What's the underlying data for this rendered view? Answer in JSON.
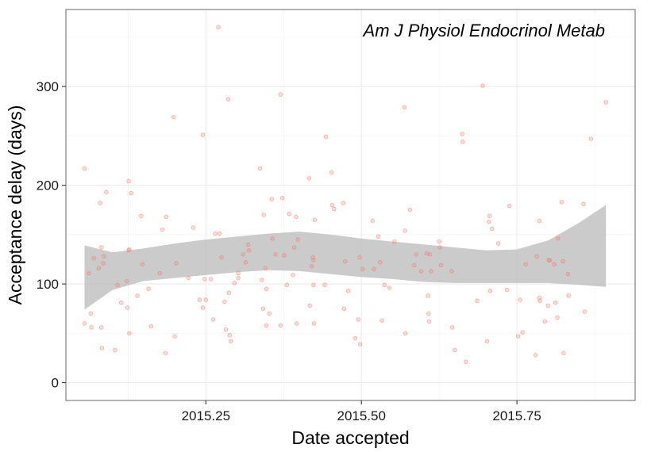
{
  "chart_data": {
    "type": "scatter",
    "title": "",
    "annotation": "Am J Physiol Endocrinol Metab",
    "xlabel": "Date accepted",
    "ylabel": "Acceptance delay (days)",
    "xlim": [
      2015.025,
      2015.94
    ],
    "ylim": [
      -18,
      378
    ],
    "x_ticks": [
      2015.25,
      2015.5,
      2015.75
    ],
    "x_tick_labels": [
      "2015.25",
      "2015.50",
      "2015.75"
    ],
    "y_ticks": [
      0,
      100,
      200,
      300
    ],
    "y_tick_labels": [
      "0",
      "100",
      "200",
      "300"
    ],
    "grid": true,
    "colors": {
      "points": "#f8766d",
      "band": "#bebebe",
      "grid": "#ebebeb",
      "panel_border": "#7f7f7f"
    },
    "points": [
      [
        2015.055,
        217
      ],
      [
        2015.055,
        60
      ],
      [
        2015.062,
        111
      ],
      [
        2015.065,
        70
      ],
      [
        2015.066,
        56
      ],
      [
        2015.07,
        126
      ],
      [
        2015.078,
        116
      ],
      [
        2015.08,
        182
      ],
      [
        2015.082,
        137
      ],
      [
        2015.082,
        56
      ],
      [
        2015.083,
        35
      ],
      [
        2015.085,
        121
      ],
      [
        2015.086,
        128
      ],
      [
        2015.09,
        193
      ],
      [
        2015.104,
        33
      ],
      [
        2015.108,
        99
      ],
      [
        2015.114,
        81
      ],
      [
        2015.123,
        103
      ],
      [
        2015.124,
        76
      ],
      [
        2015.126,
        134
      ],
      [
        2015.126,
        204
      ],
      [
        2015.127,
        50
      ],
      [
        2015.127,
        135
      ],
      [
        2015.13,
        192
      ],
      [
        2015.14,
        88
      ],
      [
        2015.146,
        169
      ],
      [
        2015.148,
        120
      ],
      [
        2015.158,
        95
      ],
      [
        2015.162,
        57
      ],
      [
        2015.176,
        111
      ],
      [
        2015.18,
        155
      ],
      [
        2015.185,
        30
      ],
      [
        2015.186,
        168
      ],
      [
        2015.198,
        269
      ],
      [
        2015.2,
        47
      ],
      [
        2015.202,
        121
      ],
      [
        2015.222,
        106
      ],
      [
        2015.23,
        157
      ],
      [
        2015.24,
        84
      ],
      [
        2015.245,
        251
      ],
      [
        2015.245,
        76
      ],
      [
        2015.248,
        105
      ],
      [
        2015.25,
        84
      ],
      [
        2015.258,
        105
      ],
      [
        2015.262,
        64
      ],
      [
        2015.265,
        151
      ],
      [
        2015.27,
        360
      ],
      [
        2015.272,
        151
      ],
      [
        2015.275,
        127
      ],
      [
        2015.28,
        82
      ],
      [
        2015.282,
        54
      ],
      [
        2015.286,
        287
      ],
      [
        2015.287,
        91
      ],
      [
        2015.288,
        48
      ],
      [
        2015.29,
        42
      ],
      [
        2015.296,
        101
      ],
      [
        2015.302,
        106
      ],
      [
        2015.302,
        111
      ],
      [
        2015.31,
        130
      ],
      [
        2015.314,
        122
      ],
      [
        2015.318,
        140
      ],
      [
        2015.319,
        134
      ],
      [
        2015.337,
        217
      ],
      [
        2015.34,
        104
      ],
      [
        2015.342,
        75
      ],
      [
        2015.343,
        170
      ],
      [
        2015.346,
        116
      ],
      [
        2015.347,
        58
      ],
      [
        2015.347,
        95
      ],
      [
        2015.352,
        70
      ],
      [
        2015.356,
        186
      ],
      [
        2015.357,
        146
      ],
      [
        2015.362,
        130
      ],
      [
        2015.37,
        292
      ],
      [
        2015.37,
        58
      ],
      [
        2015.373,
        187
      ],
      [
        2015.376,
        129
      ],
      [
        2015.38,
        99
      ],
      [
        2015.384,
        171
      ],
      [
        2015.39,
        109
      ],
      [
        2015.392,
        137
      ],
      [
        2015.395,
        168
      ],
      [
        2015.396,
        60
      ],
      [
        2015.398,
        145
      ],
      [
        2015.416,
        207
      ],
      [
        2015.417,
        78
      ],
      [
        2015.42,
        118
      ],
      [
        2015.422,
        127
      ],
      [
        2015.423,
        99
      ],
      [
        2015.423,
        124
      ],
      [
        2015.424,
        60
      ],
      [
        2015.425,
        165
      ],
      [
        2015.441,
        99
      ],
      [
        2015.443,
        249
      ],
      [
        2015.452,
        213
      ],
      [
        2015.453,
        180
      ],
      [
        2015.456,
        176
      ],
      [
        2015.471,
        182
      ],
      [
        2015.472,
        75
      ],
      [
        2015.474,
        123
      ],
      [
        2015.479,
        93
      ],
      [
        2015.49,
        45
      ],
      [
        2015.495,
        64
      ],
      [
        2015.497,
        127
      ],
      [
        2015.498,
        39
      ],
      [
        2015.502,
        115
      ],
      [
        2015.518,
        164
      ],
      [
        2015.52,
        115
      ],
      [
        2015.527,
        148
      ],
      [
        2015.53,
        122
      ],
      [
        2015.533,
        63
      ],
      [
        2015.537,
        99
      ],
      [
        2015.545,
        96
      ],
      [
        2015.553,
        143
      ],
      [
        2015.569,
        279
      ],
      [
        2015.57,
        154
      ],
      [
        2015.571,
        50
      ],
      [
        2015.578,
        175
      ],
      [
        2015.585,
        119
      ],
      [
        2015.588,
        130
      ],
      [
        2015.596,
        113
      ],
      [
        2015.605,
        131
      ],
      [
        2015.607,
        88
      ],
      [
        2015.608,
        70
      ],
      [
        2015.609,
        62
      ],
      [
        2015.61,
        130
      ],
      [
        2015.612,
        113
      ],
      [
        2015.625,
        143
      ],
      [
        2015.626,
        137
      ],
      [
        2015.628,
        119
      ],
      [
        2015.645,
        113
      ],
      [
        2015.646,
        56
      ],
      [
        2015.65,
        33
      ],
      [
        2015.662,
        252
      ],
      [
        2015.663,
        244
      ],
      [
        2015.668,
        21
      ],
      [
        2015.686,
        83
      ],
      [
        2015.695,
        301
      ],
      [
        2015.702,
        42
      ],
      [
        2015.705,
        163
      ],
      [
        2015.706,
        169
      ],
      [
        2015.707,
        93
      ],
      [
        2015.71,
        156
      ],
      [
        2015.72,
        141
      ],
      [
        2015.734,
        94
      ],
      [
        2015.738,
        179
      ],
      [
        2015.752,
        47
      ],
      [
        2015.755,
        84
      ],
      [
        2015.759,
        51
      ],
      [
        2015.764,
        120
      ],
      [
        2015.78,
        28
      ],
      [
        2015.782,
        128
      ],
      [
        2015.786,
        86
      ],
      [
        2015.786,
        164
      ],
      [
        2015.787,
        83
      ],
      [
        2015.795,
        62
      ],
      [
        2015.8,
        78
      ],
      [
        2015.801,
        124
      ],
      [
        2015.803,
        124
      ],
      [
        2015.81,
        120
      ],
      [
        2015.812,
        81
      ],
      [
        2015.815,
        66
      ],
      [
        2015.816,
        146
      ],
      [
        2015.822,
        183
      ],
      [
        2015.824,
        123
      ],
      [
        2015.825,
        30
      ],
      [
        2015.832,
        110
      ],
      [
        2015.833,
        88
      ],
      [
        2015.857,
        181
      ],
      [
        2015.859,
        72
      ],
      [
        2015.869,
        247
      ],
      [
        2015.893,
        284
      ]
    ],
    "smooth": {
      "x": [
        2015.055,
        2015.1,
        2015.15,
        2015.2,
        2015.25,
        2015.3,
        2015.35,
        2015.4,
        2015.45,
        2015.5,
        2015.55,
        2015.6,
        2015.65,
        2015.7,
        2015.75,
        2015.8,
        2015.85,
        2015.893
      ],
      "lower": [
        74,
        94,
        103,
        106,
        109,
        112,
        114,
        113,
        110,
        107,
        105,
        102,
        101,
        101,
        101,
        101,
        99,
        97
      ],
      "upper": [
        139,
        132,
        136,
        141,
        145,
        148,
        151,
        153,
        150,
        146,
        143,
        140,
        137,
        134,
        135,
        144,
        162,
        180
      ]
    }
  }
}
